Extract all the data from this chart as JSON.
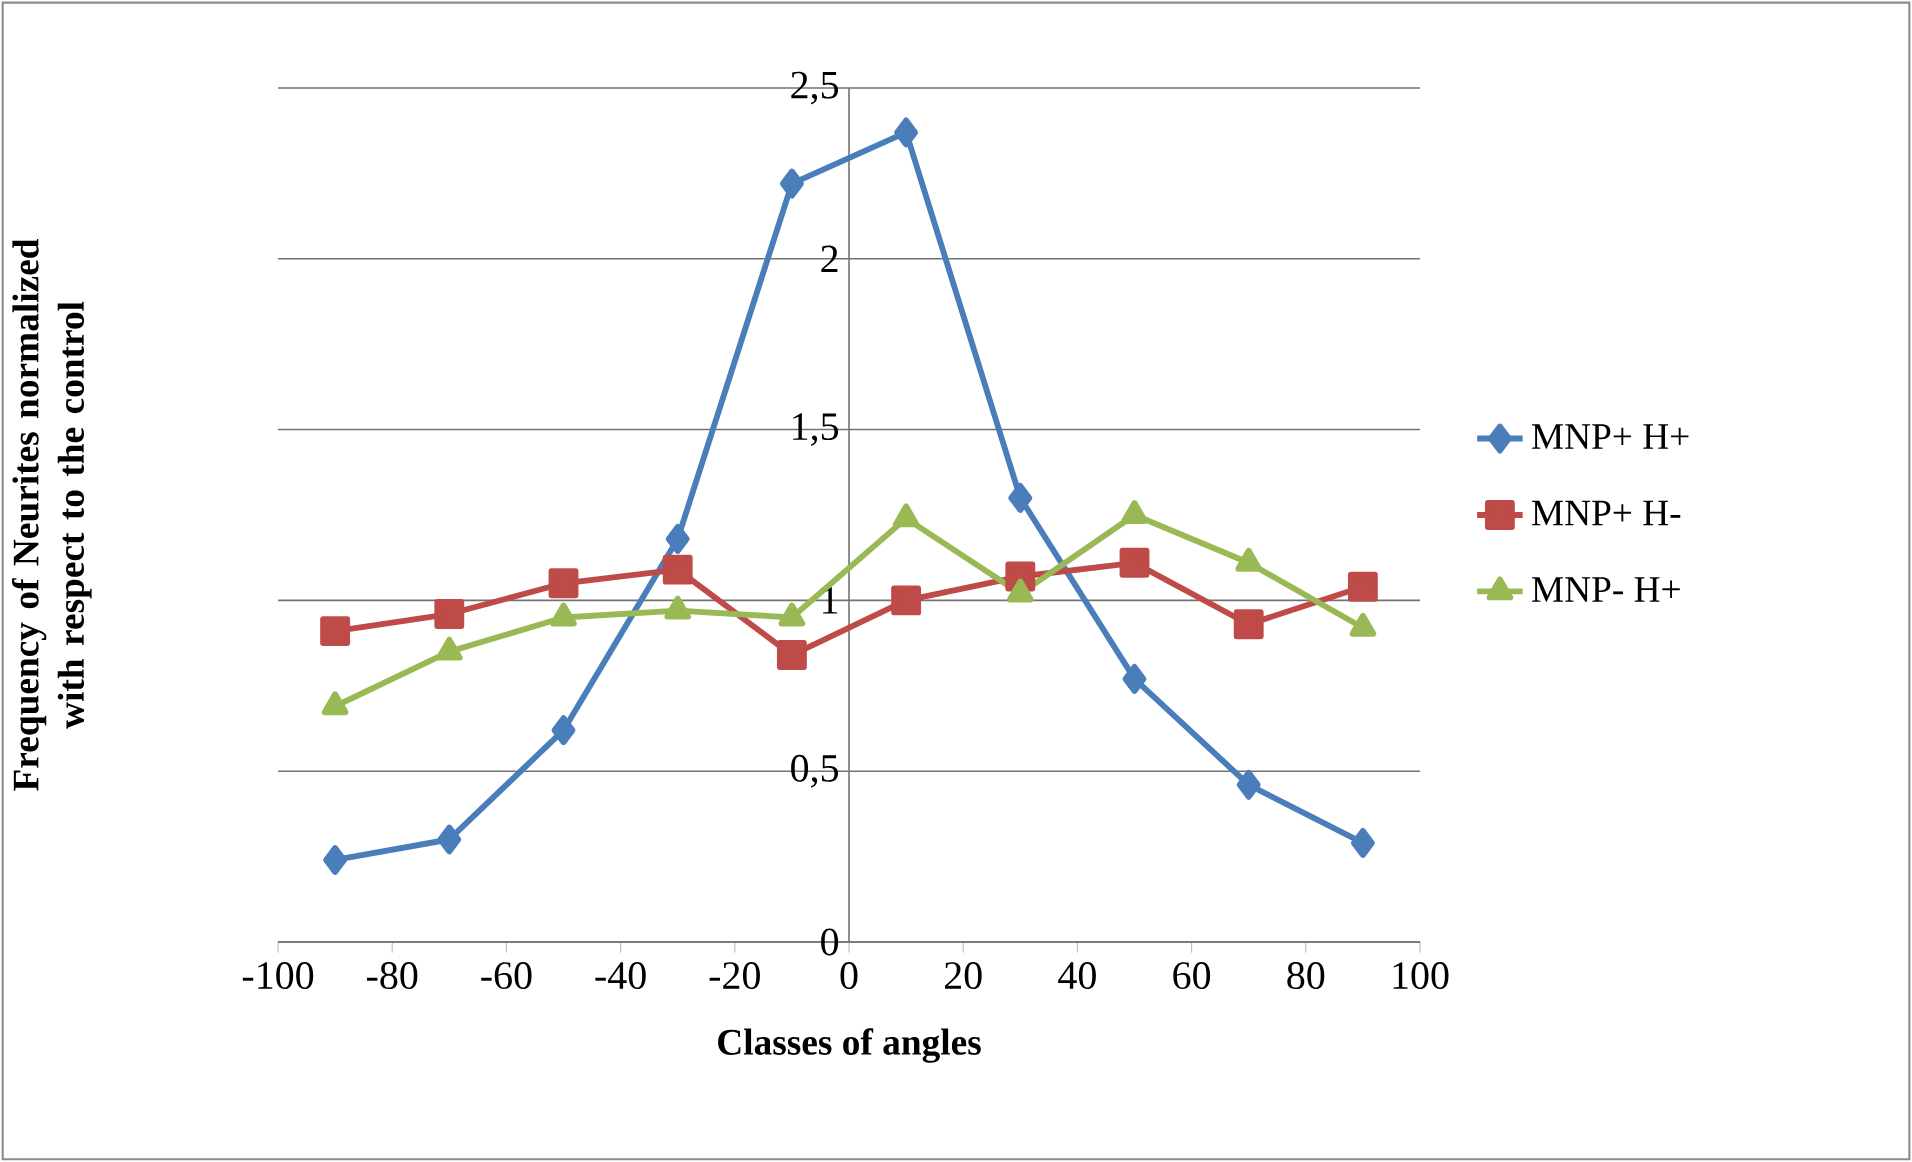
{
  "chart_data": {
    "type": "line",
    "xlabel": "Classes of angles",
    "ylabel": "Frequency of Neurites normalized with respect to the control",
    "x": [
      -90,
      -70,
      -50,
      -30,
      -10,
      10,
      30,
      50,
      70,
      90
    ],
    "series": [
      {
        "name": "MNP+ H+",
        "color": "#4a7ebb",
        "marker": "diamond",
        "values": [
          0.24,
          0.3,
          0.62,
          1.18,
          2.22,
          2.37,
          1.3,
          0.77,
          0.46,
          0.29
        ]
      },
      {
        "name": "MNP+ H-",
        "color": "#be4b48",
        "marker": "square",
        "values": [
          0.91,
          0.96,
          1.05,
          1.09,
          0.84,
          1.0,
          1.07,
          1.11,
          0.93,
          1.04
        ]
      },
      {
        "name": "MNP-  H+",
        "color": "#98b954",
        "marker": "triangle",
        "values": [
          0.69,
          0.85,
          0.95,
          0.97,
          0.95,
          1.24,
          1.02,
          1.25,
          1.11,
          0.92
        ]
      }
    ],
    "xlim": [
      -100,
      100
    ],
    "xticks": [
      -100,
      -80,
      -60,
      -40,
      -20,
      0,
      20,
      40,
      60,
      80,
      100
    ],
    "ylim": [
      0,
      2.5
    ],
    "yticks": [
      0,
      {
        "value": 0.5,
        "label": "0,5"
      },
      1,
      {
        "value": 1.5,
        "label": "1,5"
      },
      2,
      {
        "value": 2.5,
        "label": "2,5"
      }
    ],
    "grid": "y",
    "legend": "right",
    "line_style": "solid"
  }
}
